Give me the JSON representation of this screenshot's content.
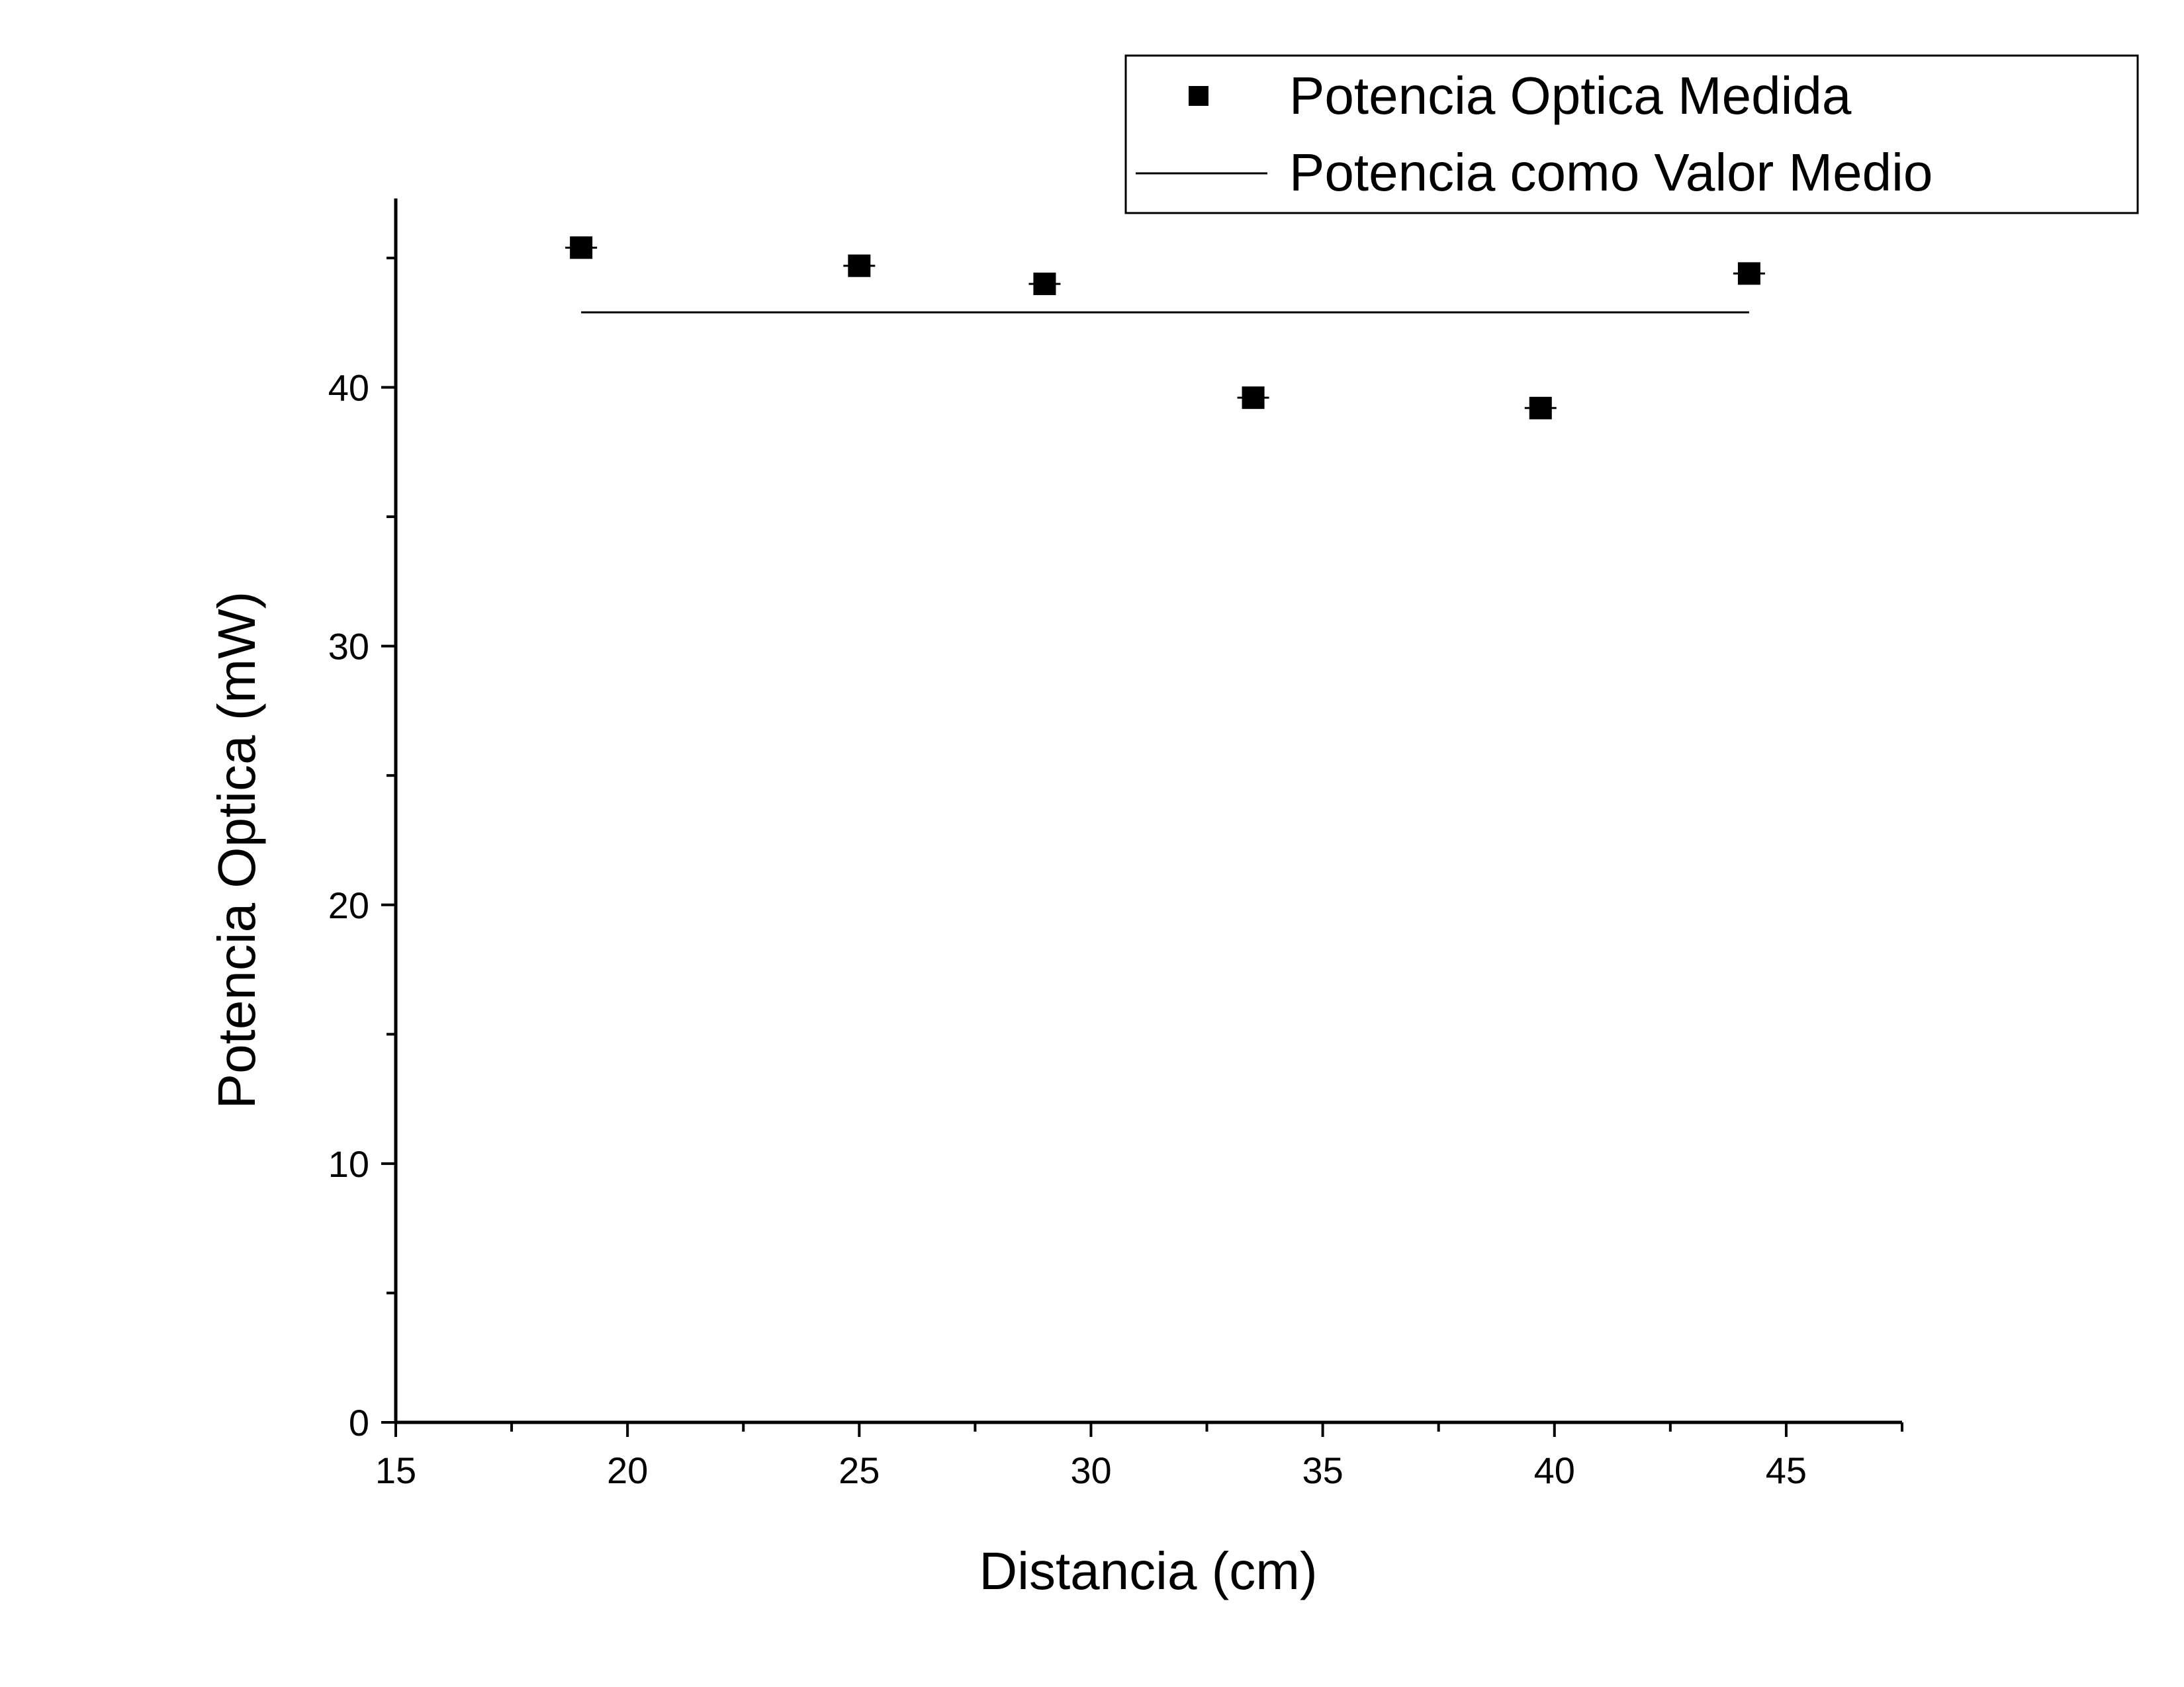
{
  "chart_data": {
    "type": "scatter",
    "title": "",
    "xlabel": "Distancia (cm)",
    "ylabel": "Potencia Optica (mW)",
    "xlim": [
      15,
      47.5
    ],
    "ylim": [
      0,
      47.3
    ],
    "xticks": [
      15,
      20,
      25,
      30,
      35,
      40,
      45
    ],
    "xtick_labels": [
      "15",
      "20",
      "25",
      "30",
      "35",
      "40",
      "45"
    ],
    "x_minor_ticks": [
      17.5,
      22.5,
      27.5,
      32.5,
      37.5,
      42.5,
      47.5
    ],
    "yticks": [
      0,
      10,
      20,
      30,
      40
    ],
    "ytick_labels": [
      "0",
      "10",
      "20",
      "30",
      "40"
    ],
    "y_minor_ticks": [
      5,
      15,
      25,
      35,
      45
    ],
    "grid": false,
    "legend_position": "top-right",
    "series": [
      {
        "name": "Potencia Optica Medida",
        "marker": "square",
        "color": "#000000",
        "x": [
          19,
          25,
          29,
          33.5,
          39.7,
          44.2
        ],
        "y": [
          45.4,
          44.7,
          44.0,
          39.6,
          39.2,
          44.4
        ]
      },
      {
        "name": "Potencia como Valor Medio",
        "type": "line",
        "color": "#000000",
        "x": [
          19,
          44.2
        ],
        "y": [
          42.9,
          42.9
        ]
      }
    ]
  }
}
